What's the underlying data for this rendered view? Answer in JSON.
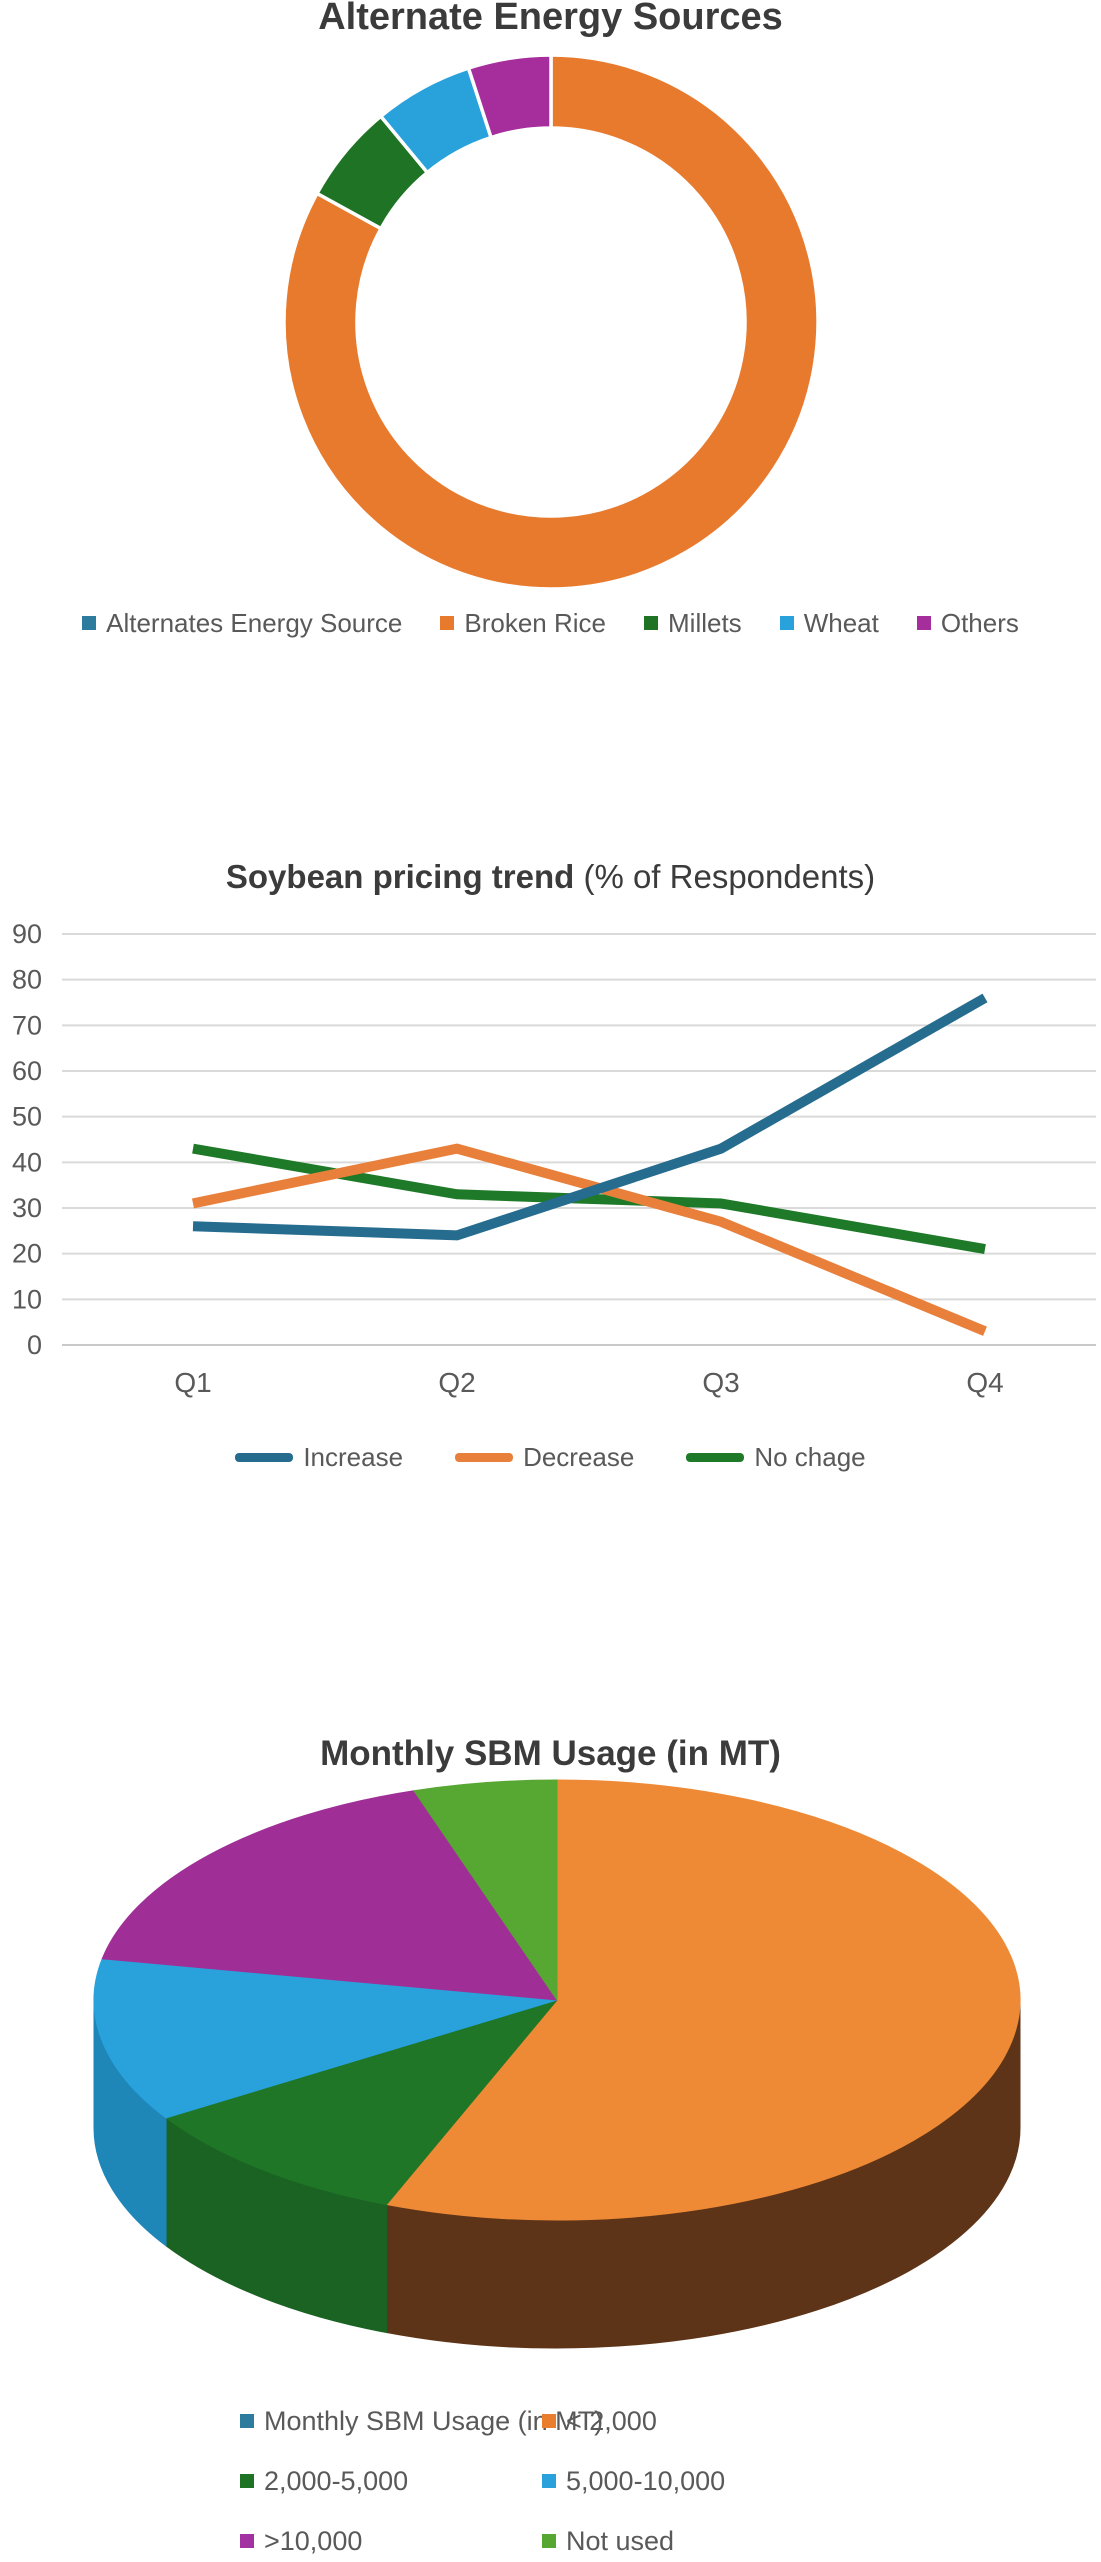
{
  "charts": [
    {
      "title": "Alternate Energy Sources",
      "legend": [
        {
          "label": "Alternates Energy Source",
          "color": "#2E7C9D"
        },
        {
          "label": "Broken Rice",
          "color": "#E87A2E"
        },
        {
          "label": "Millets",
          "color": "#1E7324"
        },
        {
          "label": "Wheat",
          "color": "#29A2DC"
        },
        {
          "label": "Others",
          "color": "#A62D9C"
        }
      ],
      "chart_data": {
        "type": "pie",
        "subtype": "donut",
        "title": "Alternate Energy Sources",
        "labels": [
          "Alternates Energy Source",
          "Broken Rice",
          "Millets",
          "Wheat",
          "Others"
        ],
        "values": [
          0,
          83,
          6,
          6,
          5
        ],
        "unit": "percent",
        "colors": [
          "#2E7C9D",
          "#E87A2E",
          "#1E7324",
          "#29A2DC",
          "#A62D9C"
        ],
        "legend_position": "bottom"
      }
    },
    {
      "title_bold": "Soybean pricing trend",
      "title_rest": " (% of Respondents)",
      "legend": [
        {
          "label": "Increase",
          "color": "#266C8E"
        },
        {
          "label": "Decrease",
          "color": "#E8803C"
        },
        {
          "label": "No chage",
          "color": "#1E7A28"
        }
      ],
      "chart_data": {
        "type": "line",
        "title": "Soybean pricing trend (% of Respondents)",
        "x": [
          "Q1",
          "Q2",
          "Q3",
          "Q4"
        ],
        "series": [
          {
            "name": "Increase",
            "color": "#266C8E",
            "values": [
              26,
              24,
              43,
              76
            ]
          },
          {
            "name": "Decrease",
            "color": "#E8803C",
            "values": [
              31,
              43,
              27,
              3
            ]
          },
          {
            "name": "No chage",
            "color": "#1E7A28",
            "values": [
              43,
              33,
              31,
              21
            ]
          }
        ],
        "ylim": [
          0,
          90
        ],
        "yticks": [
          0,
          10,
          20,
          30,
          40,
          50,
          60,
          70,
          80,
          90
        ],
        "grid": true,
        "legend_position": "bottom"
      }
    },
    {
      "title": "Monthly SBM Usage (in MT)",
      "legend": [
        {
          "label": "Monthly SBM Usage (in MT)",
          "color": "#2E7C9D"
        },
        {
          "label": "< 2,000",
          "color": "#E87E2E"
        },
        {
          "label": "2,000-5,000",
          "color": "#1E7324"
        },
        {
          "label": "5,000-10,000",
          "color": "#2BA1DC"
        },
        {
          "label": ">10,000",
          "color": "#A231A1"
        },
        {
          "label": "Not used",
          "color": "#55A732"
        }
      ],
      "chart_data": {
        "type": "pie",
        "subtype": "pie3d",
        "title": "Monthly SBM Usage (in MT)",
        "labels": [
          "Monthly SBM Usage (in MT)",
          "< 2,000",
          "2,000-5,000",
          "5,000-10,000",
          ">10,000",
          "Not used"
        ],
        "values": [
          0,
          56,
          10,
          12,
          17,
          5
        ],
        "unit": "percent",
        "colors": [
          "#2E7C9D",
          "#EE8A36",
          "#1F7627",
          "#29A2DC",
          "#9F2F97",
          "#57A733"
        ],
        "side_colors": [
          "#14363F",
          "#5E3418",
          "#1B6322",
          "#1F86B8",
          "#6E2168",
          "#3F7A22"
        ],
        "legend_position": "bottom"
      }
    }
  ]
}
